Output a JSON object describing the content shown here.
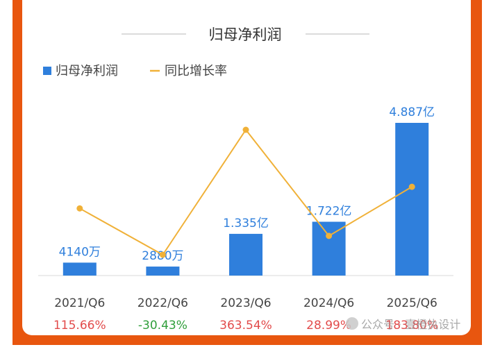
{
  "chart_data": {
    "type": "bar",
    "title": "归母净利润",
    "legend": {
      "position": "top-left",
      "items": [
        {
          "name": "归母净利润",
          "kind": "bar",
          "color": "#2f7fdc"
        },
        {
          "name": "同比增长率",
          "kind": "line",
          "color": "#f0b138"
        }
      ]
    },
    "categories": [
      "2021/Q6",
      "2022/Q6",
      "2023/Q6",
      "2024/Q6",
      "2025/Q6"
    ],
    "series": [
      {
        "name": "归母净利润",
        "type": "bar",
        "unit": "亿",
        "values": [
          0.414,
          0.288,
          1.335,
          1.722,
          4.887
        ],
        "labels": [
          "4140万",
          "2880万",
          "1.335亿",
          "1.722亿",
          "4.887亿"
        ]
      },
      {
        "name": "同比增长率",
        "type": "line",
        "unit": "%",
        "values": [
          115.66,
          -30.43,
          363.54,
          28.99,
          183.8
        ],
        "labels": [
          "115.66%",
          "-30.43%",
          "363.54%",
          "28.99%",
          "183.80%"
        ]
      }
    ],
    "label_colors": {
      "positive": "#e24b4b",
      "negative": "#2f9e3a"
    },
    "grid": false
  },
  "watermark": "公众号 · 壹橙执设计",
  "colors": {
    "frame": "#e8560f",
    "card": "#ffffff",
    "axis": "#d9d9d9",
    "divider": "#cfcfcf",
    "value_label": "#2f7fdc",
    "text": "#444444"
  }
}
